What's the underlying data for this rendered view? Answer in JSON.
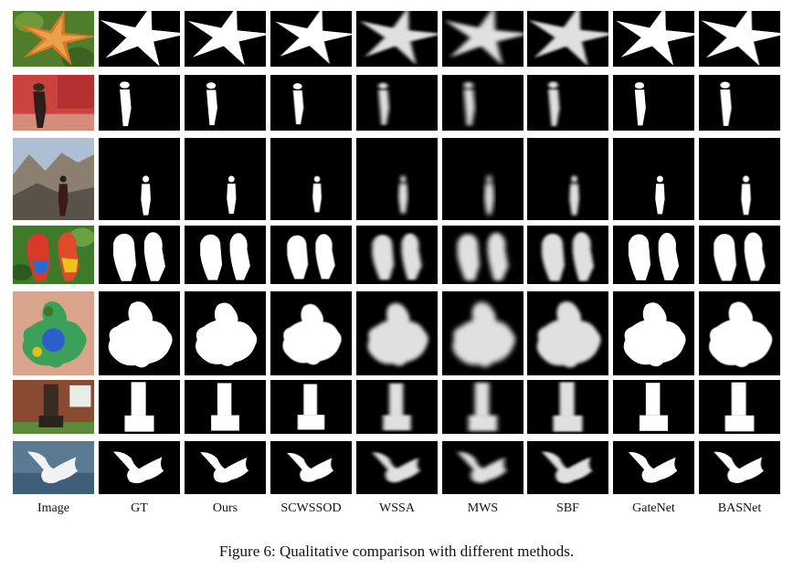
{
  "figure": {
    "columns": [
      "Image",
      "GT",
      "Ours",
      "SCWSSOD",
      "WSSA",
      "MWS",
      "SBF",
      "GateNet",
      "BASNet"
    ],
    "rows": [
      {
        "subject": "starfish"
      },
      {
        "subject": "person at red wall"
      },
      {
        "subject": "hiker on rocks"
      },
      {
        "subject": "two parrots"
      },
      {
        "subject": "clay turtle"
      },
      {
        "subject": "pillar"
      },
      {
        "subject": "egret"
      }
    ],
    "caption": "Figure 6: Qualitative comparison with different methods."
  }
}
